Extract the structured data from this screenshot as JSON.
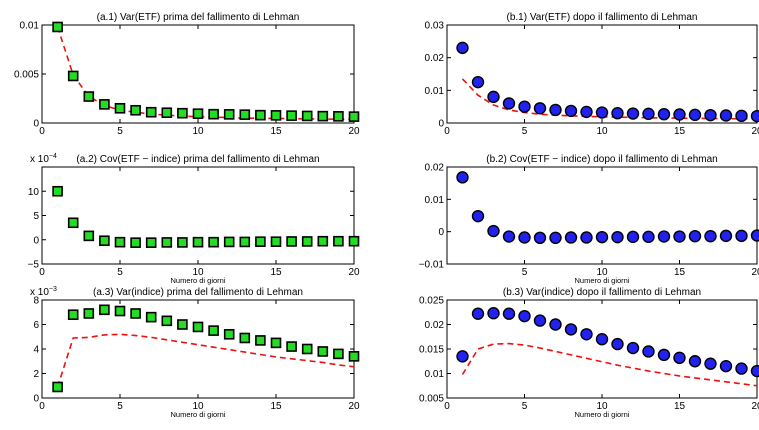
{
  "chart_data": [
    {
      "id": "a1",
      "type": "scatter",
      "title": "(a.1) Var(ETF) prima del fallimento di Lehman",
      "xlabel": "",
      "xlim": [
        0,
        20
      ],
      "ylim": [
        0,
        0.01
      ],
      "xticks": [
        "0",
        "5",
        "10",
        "15",
        "20"
      ],
      "yticks": [
        {
          "v": 0,
          "t": "0"
        },
        {
          "v": 0.005,
          "t": "0.005"
        },
        {
          "v": 0.01,
          "t": "0.01"
        }
      ],
      "exponent": "",
      "marker": {
        "shape": "square",
        "color": "#22dd22"
      },
      "x": [
        1,
        2,
        3,
        4,
        5,
        6,
        7,
        8,
        9,
        10,
        11,
        12,
        13,
        14,
        15,
        16,
        17,
        18,
        19,
        20
      ],
      "values": [
        0.0098,
        0.0048,
        0.0027,
        0.0019,
        0.0015,
        0.0013,
        0.0011,
        0.00105,
        0.001,
        0.00095,
        0.0009,
        0.00088,
        0.00085,
        0.0008,
        0.00078,
        0.00075,
        0.00072,
        0.0007,
        0.00068,
        0.00065
      ],
      "line": [
        0.0098,
        0.0049,
        0.0027,
        0.0018,
        0.0013,
        0.0011,
        0.0009,
        0.0008,
        0.0007,
        0.00065,
        0.0006,
        0.00055,
        0.0005,
        0.00048,
        0.00046,
        0.00044,
        0.00042,
        0.0004,
        0.00039,
        0.00038
      ]
    },
    {
      "id": "b1",
      "type": "scatter",
      "title": "(b.1) Var(ETF) dopo il fallimento di Lehman",
      "xlabel": "",
      "xlim": [
        0,
        20
      ],
      "ylim": [
        0,
        0.03
      ],
      "xticks": [
        "0",
        "5",
        "10",
        "15",
        "20"
      ],
      "yticks": [
        {
          "v": 0,
          "t": "0"
        },
        {
          "v": 0.01,
          "t": "0.01"
        },
        {
          "v": 0.02,
          "t": "0.02"
        },
        {
          "v": 0.03,
          "t": "0.03"
        }
      ],
      "exponent": "",
      "marker": {
        "shape": "circle",
        "color": "#2222ee"
      },
      "x": [
        1,
        2,
        3,
        4,
        5,
        6,
        7,
        8,
        9,
        10,
        11,
        12,
        13,
        14,
        15,
        16,
        17,
        18,
        19,
        20
      ],
      "values": [
        0.023,
        0.0125,
        0.008,
        0.006,
        0.005,
        0.0045,
        0.004,
        0.0037,
        0.0034,
        0.0032,
        0.003,
        0.0029,
        0.0028,
        0.0027,
        0.0026,
        0.0025,
        0.0024,
        0.0023,
        0.0022,
        0.0021
      ],
      "line": [
        0.0135,
        0.0085,
        0.0055,
        0.004,
        0.0032,
        0.0027,
        0.0024,
        0.0022,
        0.002,
        0.0019,
        0.0018,
        0.0017,
        0.0016,
        0.0015,
        0.0015,
        0.0014,
        0.0014,
        0.0013,
        0.0013,
        0.0013
      ]
    },
    {
      "id": "a2",
      "type": "scatter",
      "title": "(a.2) Cov(ETF − indice) prima del fallimento di Lehman",
      "xlabel": "Numero di giorni",
      "xlim": [
        0,
        20
      ],
      "ylim": [
        -5,
        15
      ],
      "xticks": [
        "0",
        "5",
        "10",
        "15",
        "20"
      ],
      "yticks": [
        {
          "v": -5,
          "t": "−5"
        },
        {
          "v": 0,
          "t": "0"
        },
        {
          "v": 5,
          "t": "5"
        },
        {
          "v": 10,
          "t": "10"
        }
      ],
      "exponent": "x 10",
      "exponent_sup": "−4",
      "marker": {
        "shape": "square",
        "color": "#22dd22"
      },
      "x": [
        1,
        2,
        3,
        4,
        5,
        6,
        7,
        8,
        9,
        10,
        11,
        12,
        13,
        14,
        15,
        16,
        17,
        18,
        19,
        20
      ],
      "values": [
        10,
        3.5,
        0.8,
        -0.2,
        -0.5,
        -0.6,
        -0.6,
        -0.55,
        -0.55,
        -0.5,
        -0.5,
        -0.45,
        -0.45,
        -0.4,
        -0.4,
        -0.35,
        -0.35,
        -0.3,
        -0.3,
        -0.3
      ]
    },
    {
      "id": "b2",
      "type": "scatter",
      "title": "(b.2) Cov(ETF − indice) dopo il fallimento di Lehman",
      "xlabel": "Numero di giorni",
      "xlim": [
        0,
        20
      ],
      "ylim": [
        -0.01,
        0.02
      ],
      "xticks": [
        "5",
        "10",
        "15",
        "20"
      ],
      "yticks": [
        {
          "v": -0.01,
          "t": "−0.01"
        },
        {
          "v": 0,
          "t": "0"
        },
        {
          "v": 0.01,
          "t": "0.01"
        },
        {
          "v": 0.02,
          "t": "0.02"
        }
      ],
      "exponent": "",
      "marker": {
        "shape": "circle",
        "color": "#2222ee"
      },
      "x": [
        1,
        2,
        3,
        4,
        5,
        6,
        7,
        8,
        9,
        10,
        11,
        12,
        13,
        14,
        15,
        16,
        17,
        18,
        19,
        20
      ],
      "values": [
        0.0168,
        0.0048,
        0.0002,
        -0.0015,
        -0.0018,
        -0.0019,
        -0.0019,
        -0.0018,
        -0.0018,
        -0.0017,
        -0.0017,
        -0.0016,
        -0.0016,
        -0.0015,
        -0.0015,
        -0.0014,
        -0.0014,
        -0.0013,
        -0.0013,
        -0.0012
      ]
    },
    {
      "id": "a3",
      "type": "scatter",
      "title": "(a.3) Var(indice) prima del fallimento di Lehman",
      "xlabel": "Numero di giorni",
      "xlim": [
        0,
        20
      ],
      "ylim": [
        0,
        8
      ],
      "xticks": [
        "0",
        "5",
        "10",
        "15",
        "20"
      ],
      "yticks": [
        {
          "v": 0,
          "t": "0"
        },
        {
          "v": 2,
          "t": "2"
        },
        {
          "v": 4,
          "t": "4"
        },
        {
          "v": 6,
          "t": "6"
        },
        {
          "v": 8,
          "t": "8"
        }
      ],
      "exponent": "x 10",
      "exponent_sup": "−3",
      "marker": {
        "shape": "square",
        "color": "#22dd22"
      },
      "x": [
        1,
        2,
        3,
        4,
        5,
        6,
        7,
        8,
        9,
        10,
        11,
        12,
        13,
        14,
        15,
        16,
        17,
        18,
        19,
        20
      ],
      "values": [
        0.9,
        6.8,
        6.9,
        7.2,
        7.1,
        6.9,
        6.6,
        6.3,
        6.0,
        5.8,
        5.5,
        5.2,
        4.9,
        4.7,
        4.5,
        4.2,
        4.0,
        3.8,
        3.6,
        3.4
      ],
      "line": [
        0.9,
        4.9,
        4.95,
        5.15,
        5.2,
        5.1,
        4.95,
        4.75,
        4.55,
        4.35,
        4.15,
        3.95,
        3.75,
        3.55,
        3.35,
        3.2,
        3.05,
        2.9,
        2.7,
        2.55
      ]
    },
    {
      "id": "b3",
      "type": "scatter",
      "title": "(b.3) Var(indice) dopo il fallimento di Lehman",
      "xlabel": "Numero di giorni",
      "xlim": [
        0,
        20
      ],
      "ylim": [
        0.005,
        0.025
      ],
      "xticks": [
        "0",
        "5",
        "10",
        "15",
        "20"
      ],
      "yticks": [
        {
          "v": 0.005,
          "t": "0.005"
        },
        {
          "v": 0.01,
          "t": "0.01"
        },
        {
          "v": 0.015,
          "t": "0.015"
        },
        {
          "v": 0.02,
          "t": "0.02"
        },
        {
          "v": 0.025,
          "t": "0.025"
        }
      ],
      "exponent": "",
      "marker": {
        "shape": "circle",
        "color": "#2222ee"
      },
      "x": [
        1,
        2,
        3,
        4,
        5,
        6,
        7,
        8,
        9,
        10,
        11,
        12,
        13,
        14,
        15,
        16,
        17,
        18,
        19,
        20
      ],
      "values": [
        0.0135,
        0.0222,
        0.0223,
        0.0222,
        0.0217,
        0.0208,
        0.02,
        0.019,
        0.018,
        0.017,
        0.016,
        0.0152,
        0.0145,
        0.0138,
        0.0132,
        0.0125,
        0.012,
        0.0115,
        0.011,
        0.0105
      ],
      "line": [
        0.0098,
        0.015,
        0.016,
        0.0161,
        0.0158,
        0.0152,
        0.0145,
        0.0138,
        0.0131,
        0.0124,
        0.0117,
        0.0111,
        0.0105,
        0.01,
        0.0095,
        0.0091,
        0.0087,
        0.0083,
        0.0079,
        0.0075
      ]
    }
  ]
}
